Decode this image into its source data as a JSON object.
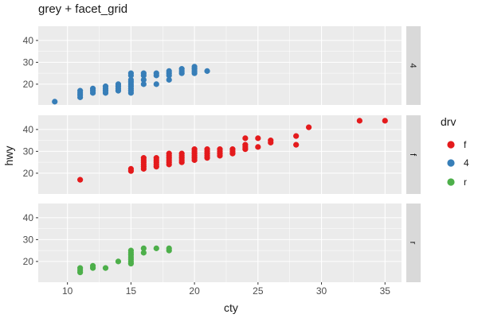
{
  "colors": {
    "panel_bg": "#ebebeb",
    "strip_bg": "#d9d9d9",
    "grid_major": "#ffffff",
    "tick_text": "#4d4d4d",
    "f": "#e41a1c",
    "4": "#377eb8",
    "r": "#4daf4a"
  },
  "chart_data": {
    "type": "scatter",
    "title": "grey + facet_grid",
    "xlabel": "cty",
    "ylabel": "hwy",
    "xlim": [
      7.7,
      36.3
    ],
    "ylim": [
      10.5,
      46.5
    ],
    "x_ticks": [
      10,
      15,
      20,
      25,
      30,
      35
    ],
    "y_ticks": [
      20,
      30,
      40
    ],
    "grid": true,
    "legend": {
      "title": "drv",
      "position": "right",
      "entries": [
        "f",
        "4",
        "r"
      ]
    },
    "facets": [
      "4",
      "f",
      "r"
    ],
    "series": [
      {
        "name": "4",
        "facet": "4",
        "points": [
          [
            9,
            12
          ],
          [
            11,
            14
          ],
          [
            11,
            15
          ],
          [
            11,
            16
          ],
          [
            11,
            17
          ],
          [
            12,
            16
          ],
          [
            12,
            17
          ],
          [
            12,
            18
          ],
          [
            13,
            16
          ],
          [
            13,
            17
          ],
          [
            13,
            18
          ],
          [
            13,
            19
          ],
          [
            14,
            17
          ],
          [
            14,
            18
          ],
          [
            14,
            19
          ],
          [
            14,
            20
          ],
          [
            15,
            16
          ],
          [
            15,
            17
          ],
          [
            15,
            18
          ],
          [
            15,
            19
          ],
          [
            15,
            20
          ],
          [
            15,
            21
          ],
          [
            15,
            22
          ],
          [
            15,
            24
          ],
          [
            15,
            25
          ],
          [
            16,
            20
          ],
          [
            16,
            22
          ],
          [
            16,
            24
          ],
          [
            16,
            25
          ],
          [
            17,
            20
          ],
          [
            17,
            24
          ],
          [
            17,
            25
          ],
          [
            18,
            22
          ],
          [
            18,
            24
          ],
          [
            18,
            25
          ],
          [
            18,
            26
          ],
          [
            19,
            25
          ],
          [
            19,
            26
          ],
          [
            19,
            27
          ],
          [
            20,
            25
          ],
          [
            20,
            26
          ],
          [
            20,
            27
          ],
          [
            20,
            28
          ],
          [
            21,
            26
          ]
        ]
      },
      {
        "name": "f",
        "facet": "f",
        "points": [
          [
            11,
            17
          ],
          [
            15,
            21
          ],
          [
            15,
            22
          ],
          [
            16,
            22
          ],
          [
            16,
            23
          ],
          [
            16,
            24
          ],
          [
            16,
            25
          ],
          [
            16,
            26
          ],
          [
            16,
            27
          ],
          [
            17,
            23
          ],
          [
            17,
            24
          ],
          [
            17,
            25
          ],
          [
            17,
            26
          ],
          [
            17,
            27
          ],
          [
            18,
            24
          ],
          [
            18,
            25
          ],
          [
            18,
            26
          ],
          [
            18,
            27
          ],
          [
            18,
            28
          ],
          [
            18,
            29
          ],
          [
            19,
            25
          ],
          [
            19,
            26
          ],
          [
            19,
            27
          ],
          [
            19,
            28
          ],
          [
            19,
            29
          ],
          [
            20,
            26
          ],
          [
            20,
            27
          ],
          [
            20,
            28
          ],
          [
            20,
            29
          ],
          [
            20,
            30
          ],
          [
            20,
            31
          ],
          [
            21,
            27
          ],
          [
            21,
            28
          ],
          [
            21,
            29
          ],
          [
            21,
            30
          ],
          [
            21,
            31
          ],
          [
            22,
            28
          ],
          [
            22,
            29
          ],
          [
            22,
            30
          ],
          [
            22,
            31
          ],
          [
            23,
            29
          ],
          [
            23,
            30
          ],
          [
            23,
            31
          ],
          [
            24,
            31
          ],
          [
            24,
            32
          ],
          [
            24,
            33
          ],
          [
            24,
            36
          ],
          [
            25,
            32
          ],
          [
            25,
            36
          ],
          [
            26,
            34
          ],
          [
            26,
            35
          ],
          [
            28,
            33
          ],
          [
            28,
            37
          ],
          [
            29,
            41
          ],
          [
            33,
            44
          ],
          [
            35,
            44
          ]
        ]
      },
      {
        "name": "r",
        "facet": "r",
        "points": [
          [
            11,
            15
          ],
          [
            11,
            16
          ],
          [
            11,
            17
          ],
          [
            12,
            17
          ],
          [
            12,
            18
          ],
          [
            13,
            17
          ],
          [
            14,
            20
          ],
          [
            15,
            19
          ],
          [
            15,
            20
          ],
          [
            15,
            21
          ],
          [
            15,
            22
          ],
          [
            15,
            23
          ],
          [
            15,
            24
          ],
          [
            15,
            25
          ],
          [
            16,
            24
          ],
          [
            16,
            26
          ],
          [
            17,
            26
          ],
          [
            18,
            25
          ],
          [
            18,
            26
          ]
        ]
      }
    ]
  }
}
